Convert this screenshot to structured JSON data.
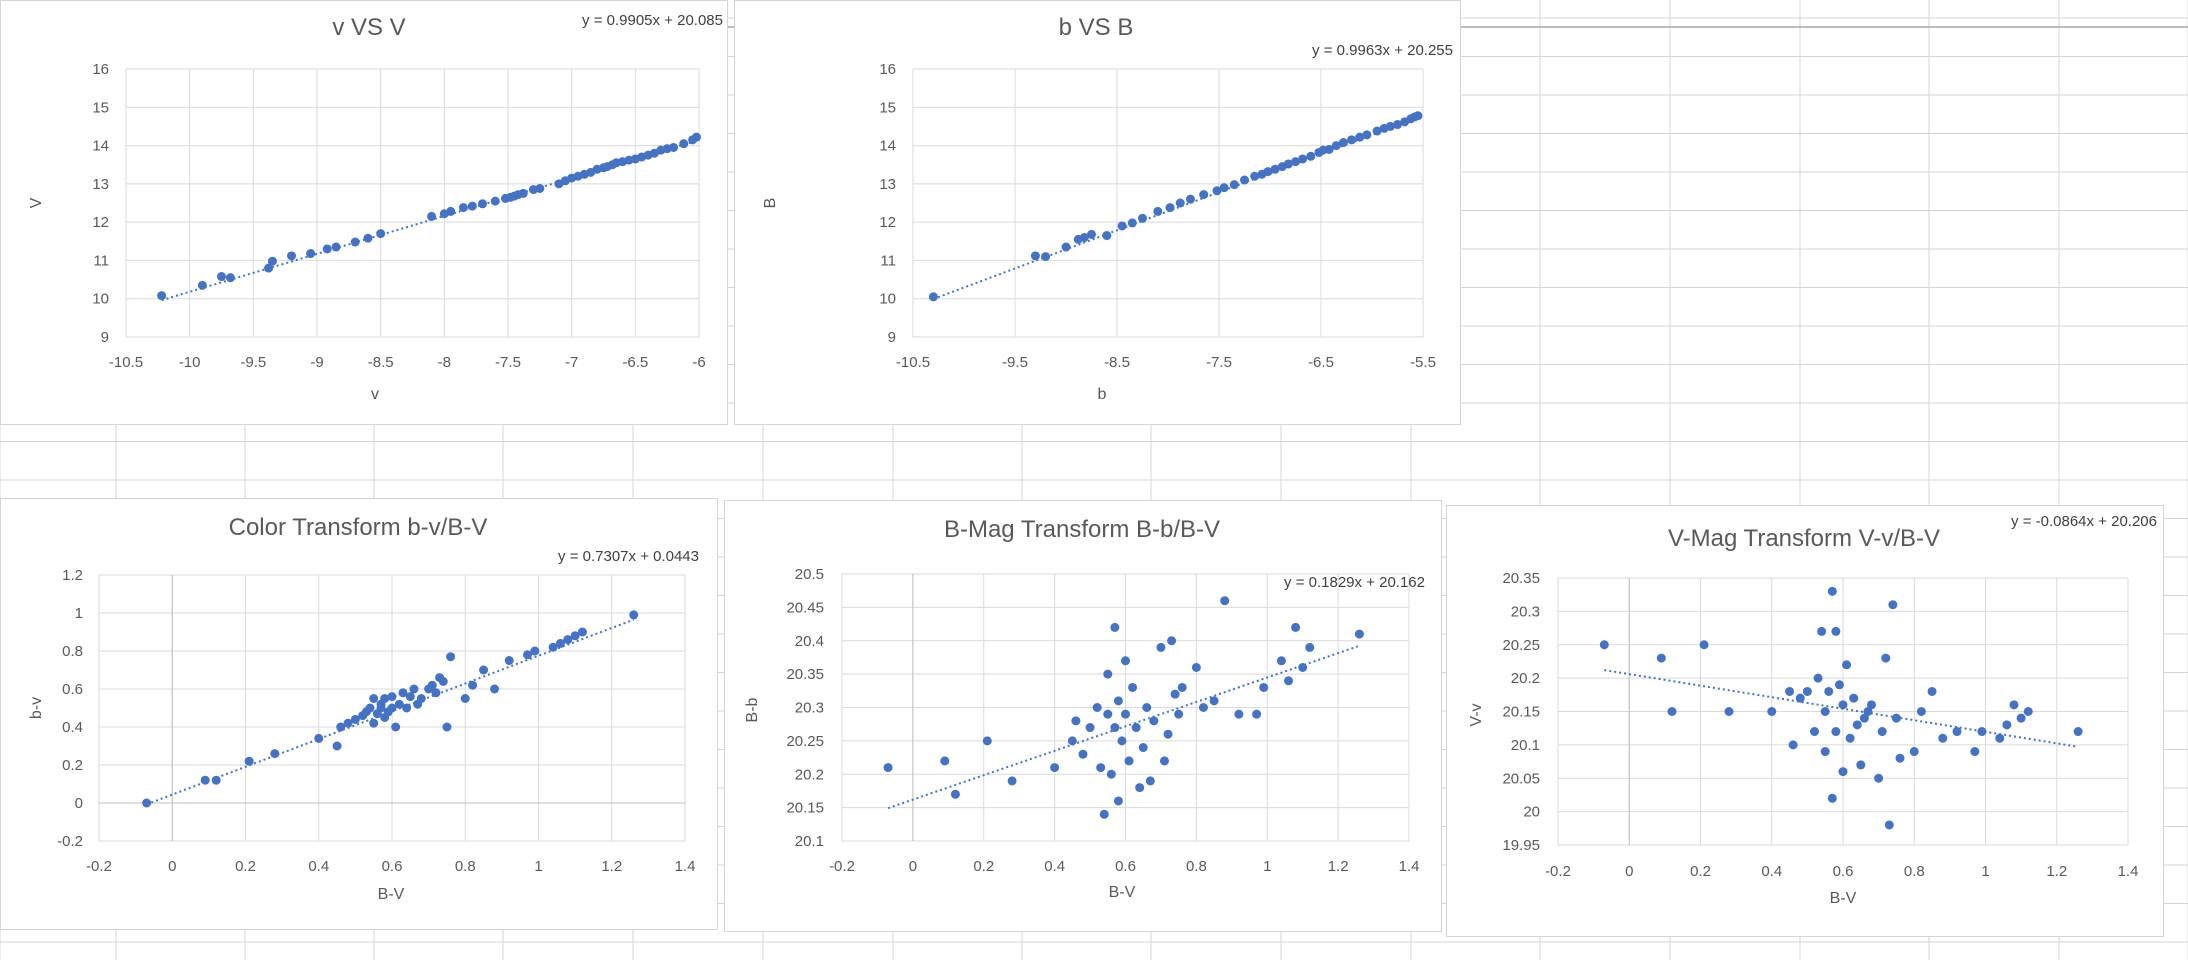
{
  "colors": {
    "marker": "#4472c4",
    "trendline": "#4472c4",
    "gridline": "#d9d9d9",
    "text": "#595959",
    "sheet_grid": "#d4d4d4"
  },
  "chart_data": [
    {
      "type": "scatter",
      "title": "v VS V",
      "xlabel": "v",
      "ylabel": "V",
      "xlim": [
        -10.5,
        -6
      ],
      "ylim": [
        9,
        16
      ],
      "xticks": [
        -10.5,
        -10,
        -9.5,
        -9,
        -8.5,
        -8,
        -7.5,
        -7,
        -6.5,
        -6
      ],
      "yticks": [
        9,
        10,
        11,
        12,
        13,
        14,
        15,
        16
      ],
      "grid": true,
      "legend": "none",
      "trendline": {
        "type": "linear",
        "slope": 0.9905,
        "intercept": 20.085,
        "style": "dotted"
      },
      "equation_label": "y = 0.9905x + 20.085",
      "series": [
        {
          "x": [
            -10.22,
            -9.9,
            -9.75,
            -9.68,
            -9.38,
            -9.35,
            -9.2,
            -9.05,
            -8.92,
            -8.85,
            -8.7,
            -8.6,
            -8.5,
            -8.1,
            -8.0,
            -7.95,
            -7.85,
            -7.78,
            -7.7,
            -7.6,
            -7.52,
            -7.48,
            -7.45,
            -7.42,
            -7.38,
            -7.3,
            -7.25,
            -7.1,
            -7.05,
            -7.0,
            -6.95,
            -6.9,
            -6.85,
            -6.8,
            -6.75,
            -6.72,
            -6.68,
            -6.65,
            -6.6,
            -6.55,
            -6.5,
            -6.45,
            -6.4,
            -6.35,
            -6.3,
            -6.25,
            -6.2,
            -6.12,
            -6.05,
            -6.02
          ],
          "y": [
            10.08,
            10.35,
            10.58,
            10.55,
            10.8,
            10.98,
            11.12,
            11.18,
            11.3,
            11.35,
            11.48,
            11.58,
            11.7,
            12.15,
            12.22,
            12.28,
            12.38,
            12.42,
            12.48,
            12.55,
            12.62,
            12.65,
            12.68,
            12.72,
            12.75,
            12.85,
            12.88,
            13.0,
            13.08,
            13.15,
            13.2,
            13.25,
            13.3,
            13.38,
            13.42,
            13.45,
            13.5,
            13.55,
            13.58,
            13.62,
            13.65,
            13.7,
            13.75,
            13.8,
            13.88,
            13.92,
            13.95,
            14.05,
            14.15,
            14.22
          ]
        }
      ]
    },
    {
      "type": "scatter",
      "title": "b VS B",
      "xlabel": "b",
      "ylabel": "B",
      "xlim": [
        -10.5,
        -5.5
      ],
      "ylim": [
        9,
        16
      ],
      "xticks": [
        -10.5,
        -9.5,
        -8.5,
        -7.5,
        -6.5,
        -5.5
      ],
      "yticks": [
        9,
        10,
        11,
        12,
        13,
        14,
        15,
        16
      ],
      "grid": true,
      "legend": "none",
      "trendline": {
        "type": "linear",
        "slope": 0.9963,
        "intercept": 20.255,
        "style": "dotted"
      },
      "equation_label": "y = 0.9963x + 20.255",
      "series": [
        {
          "x": [
            -10.3,
            -9.3,
            -9.2,
            -9.0,
            -8.88,
            -8.82,
            -8.75,
            -8.6,
            -8.45,
            -8.35,
            -8.25,
            -8.1,
            -7.98,
            -7.88,
            -7.78,
            -7.65,
            -7.52,
            -7.45,
            -7.35,
            -7.25,
            -7.15,
            -7.08,
            -7.02,
            -6.95,
            -6.88,
            -6.82,
            -6.75,
            -6.68,
            -6.6,
            -6.52,
            -6.48,
            -6.42,
            -6.35,
            -6.28,
            -6.2,
            -6.12,
            -6.05,
            -5.95,
            -5.88,
            -5.82,
            -5.75,
            -5.68,
            -5.62,
            -5.58,
            -5.55
          ],
          "y": [
            10.05,
            11.12,
            11.1,
            11.35,
            11.55,
            11.6,
            11.68,
            11.65,
            11.9,
            11.98,
            12.1,
            12.28,
            12.38,
            12.5,
            12.6,
            12.72,
            12.82,
            12.9,
            12.98,
            13.1,
            13.2,
            13.25,
            13.32,
            13.38,
            13.45,
            13.52,
            13.58,
            13.65,
            13.72,
            13.82,
            13.88,
            13.9,
            14.0,
            14.08,
            14.15,
            14.22,
            14.28,
            14.38,
            14.45,
            14.5,
            14.55,
            14.62,
            14.7,
            14.75,
            14.78
          ]
        }
      ]
    },
    {
      "type": "scatter",
      "title": "Color Transform b-v/B-V",
      "xlabel": "B-V",
      "ylabel": "b-v",
      "xlim": [
        -0.2,
        1.4
      ],
      "ylim": [
        -0.2,
        1.2
      ],
      "xticks": [
        -0.2,
        0,
        0.2,
        0.4,
        0.6,
        0.8,
        1,
        1.2,
        1.4
      ],
      "yticks": [
        -0.2,
        0,
        0.2,
        0.4,
        0.6,
        0.8,
        1,
        1.2
      ],
      "grid": true,
      "legend": "none",
      "trendline": {
        "type": "linear",
        "slope": 0.7307,
        "intercept": 0.0443,
        "style": "dotted"
      },
      "equation_label": "y = 0.7307x + 0.0443",
      "series": [
        {
          "x": [
            -0.07,
            0.09,
            0.12,
            0.21,
            0.28,
            0.4,
            0.45,
            0.46,
            0.48,
            0.5,
            0.52,
            0.53,
            0.54,
            0.55,
            0.55,
            0.56,
            0.57,
            0.57,
            0.58,
            0.58,
            0.59,
            0.6,
            0.6,
            0.61,
            0.62,
            0.63,
            0.64,
            0.65,
            0.66,
            0.67,
            0.68,
            0.7,
            0.71,
            0.72,
            0.73,
            0.74,
            0.75,
            0.76,
            0.8,
            0.82,
            0.85,
            0.88,
            0.92,
            0.97,
            0.99,
            1.04,
            1.06,
            1.08,
            1.1,
            1.12,
            1.26
          ],
          "y": [
            0.0,
            0.12,
            0.12,
            0.22,
            0.26,
            0.34,
            0.3,
            0.4,
            0.42,
            0.44,
            0.46,
            0.48,
            0.5,
            0.42,
            0.55,
            0.47,
            0.5,
            0.52,
            0.45,
            0.55,
            0.48,
            0.5,
            0.56,
            0.4,
            0.52,
            0.58,
            0.5,
            0.56,
            0.6,
            0.52,
            0.55,
            0.6,
            0.62,
            0.58,
            0.66,
            0.64,
            0.4,
            0.77,
            0.55,
            0.62,
            0.7,
            0.6,
            0.75,
            0.78,
            0.8,
            0.82,
            0.84,
            0.86,
            0.88,
            0.9,
            0.99
          ]
        }
      ]
    },
    {
      "type": "scatter",
      "title": "B-Mag Transform B-b/B-V",
      "xlabel": "B-V",
      "ylabel": "B-b",
      "xlim": [
        -0.2,
        1.4
      ],
      "ylim": [
        20.1,
        20.5
      ],
      "xticks": [
        -0.2,
        0,
        0.2,
        0.4,
        0.6,
        0.8,
        1,
        1.2,
        1.4
      ],
      "yticks": [
        20.1,
        20.15,
        20.2,
        20.25,
        20.3,
        20.35,
        20.4,
        20.45,
        20.5
      ],
      "grid": true,
      "legend": "none",
      "trendline": {
        "type": "linear",
        "slope": 0.1829,
        "intercept": 20.162,
        "style": "dotted"
      },
      "equation_label": "y = 0.1829x + 20.162",
      "series": [
        {
          "x": [
            -0.07,
            0.09,
            0.12,
            0.21,
            0.28,
            0.4,
            0.45,
            0.46,
            0.48,
            0.5,
            0.52,
            0.53,
            0.54,
            0.55,
            0.55,
            0.56,
            0.57,
            0.57,
            0.58,
            0.58,
            0.59,
            0.6,
            0.6,
            0.61,
            0.62,
            0.63,
            0.64,
            0.65,
            0.66,
            0.67,
            0.68,
            0.7,
            0.71,
            0.72,
            0.73,
            0.74,
            0.75,
            0.76,
            0.8,
            0.82,
            0.85,
            0.88,
            0.92,
            0.97,
            0.99,
            1.04,
            1.06,
            1.08,
            1.1,
            1.12,
            1.26
          ],
          "y": [
            20.21,
            20.22,
            20.17,
            20.25,
            20.19,
            20.21,
            20.25,
            20.28,
            20.23,
            20.27,
            20.3,
            20.21,
            20.14,
            20.29,
            20.35,
            20.2,
            20.27,
            20.42,
            20.31,
            20.16,
            20.25,
            20.29,
            20.37,
            20.22,
            20.33,
            20.27,
            20.18,
            20.24,
            20.3,
            20.19,
            20.28,
            20.39,
            20.22,
            20.26,
            20.4,
            20.32,
            20.29,
            20.33,
            20.36,
            20.3,
            20.31,
            20.46,
            20.29,
            20.29,
            20.33,
            20.37,
            20.34,
            20.42,
            20.36,
            20.39,
            20.41
          ]
        }
      ]
    },
    {
      "type": "scatter",
      "title": "V-Mag Transform V-v/B-V",
      "xlabel": "B-V",
      "ylabel": "V-v",
      "xlim": [
        -0.2,
        1.4
      ],
      "ylim": [
        19.95,
        20.35
      ],
      "xticks": [
        -0.2,
        0,
        0.2,
        0.4,
        0.6,
        0.8,
        1,
        1.2,
        1.4
      ],
      "yticks": [
        19.95,
        20.0,
        20.05,
        20.1,
        20.15,
        20.2,
        20.25,
        20.3,
        20.35
      ],
      "grid": true,
      "legend": "none",
      "trendline": {
        "type": "linear",
        "slope": -0.0864,
        "intercept": 20.206,
        "style": "dotted"
      },
      "equation_label": "y = -0.0864x + 20.206",
      "series": [
        {
          "x": [
            -0.07,
            0.09,
            0.12,
            0.21,
            0.28,
            0.4,
            0.45,
            0.46,
            0.48,
            0.5,
            0.52,
            0.53,
            0.54,
            0.55,
            0.55,
            0.56,
            0.57,
            0.57,
            0.58,
            0.58,
            0.59,
            0.6,
            0.6,
            0.61,
            0.62,
            0.63,
            0.64,
            0.65,
            0.66,
            0.67,
            0.68,
            0.7,
            0.71,
            0.72,
            0.73,
            0.74,
            0.75,
            0.76,
            0.8,
            0.82,
            0.85,
            0.88,
            0.92,
            0.97,
            0.99,
            1.04,
            1.06,
            1.08,
            1.1,
            1.12,
            1.26
          ],
          "y": [
            20.25,
            20.23,
            20.15,
            20.25,
            20.15,
            20.15,
            20.18,
            20.1,
            20.17,
            20.18,
            20.12,
            20.2,
            20.27,
            20.15,
            20.09,
            20.18,
            20.33,
            20.02,
            20.12,
            20.27,
            20.19,
            20.06,
            20.16,
            20.22,
            20.11,
            20.17,
            20.13,
            20.07,
            20.14,
            20.15,
            20.16,
            20.05,
            20.12,
            20.23,
            19.98,
            20.31,
            20.14,
            20.08,
            20.09,
            20.15,
            20.18,
            20.11,
            20.12,
            20.09,
            20.12,
            20.11,
            20.13,
            20.16,
            20.14,
            20.15,
            20.12
          ]
        }
      ]
    }
  ]
}
